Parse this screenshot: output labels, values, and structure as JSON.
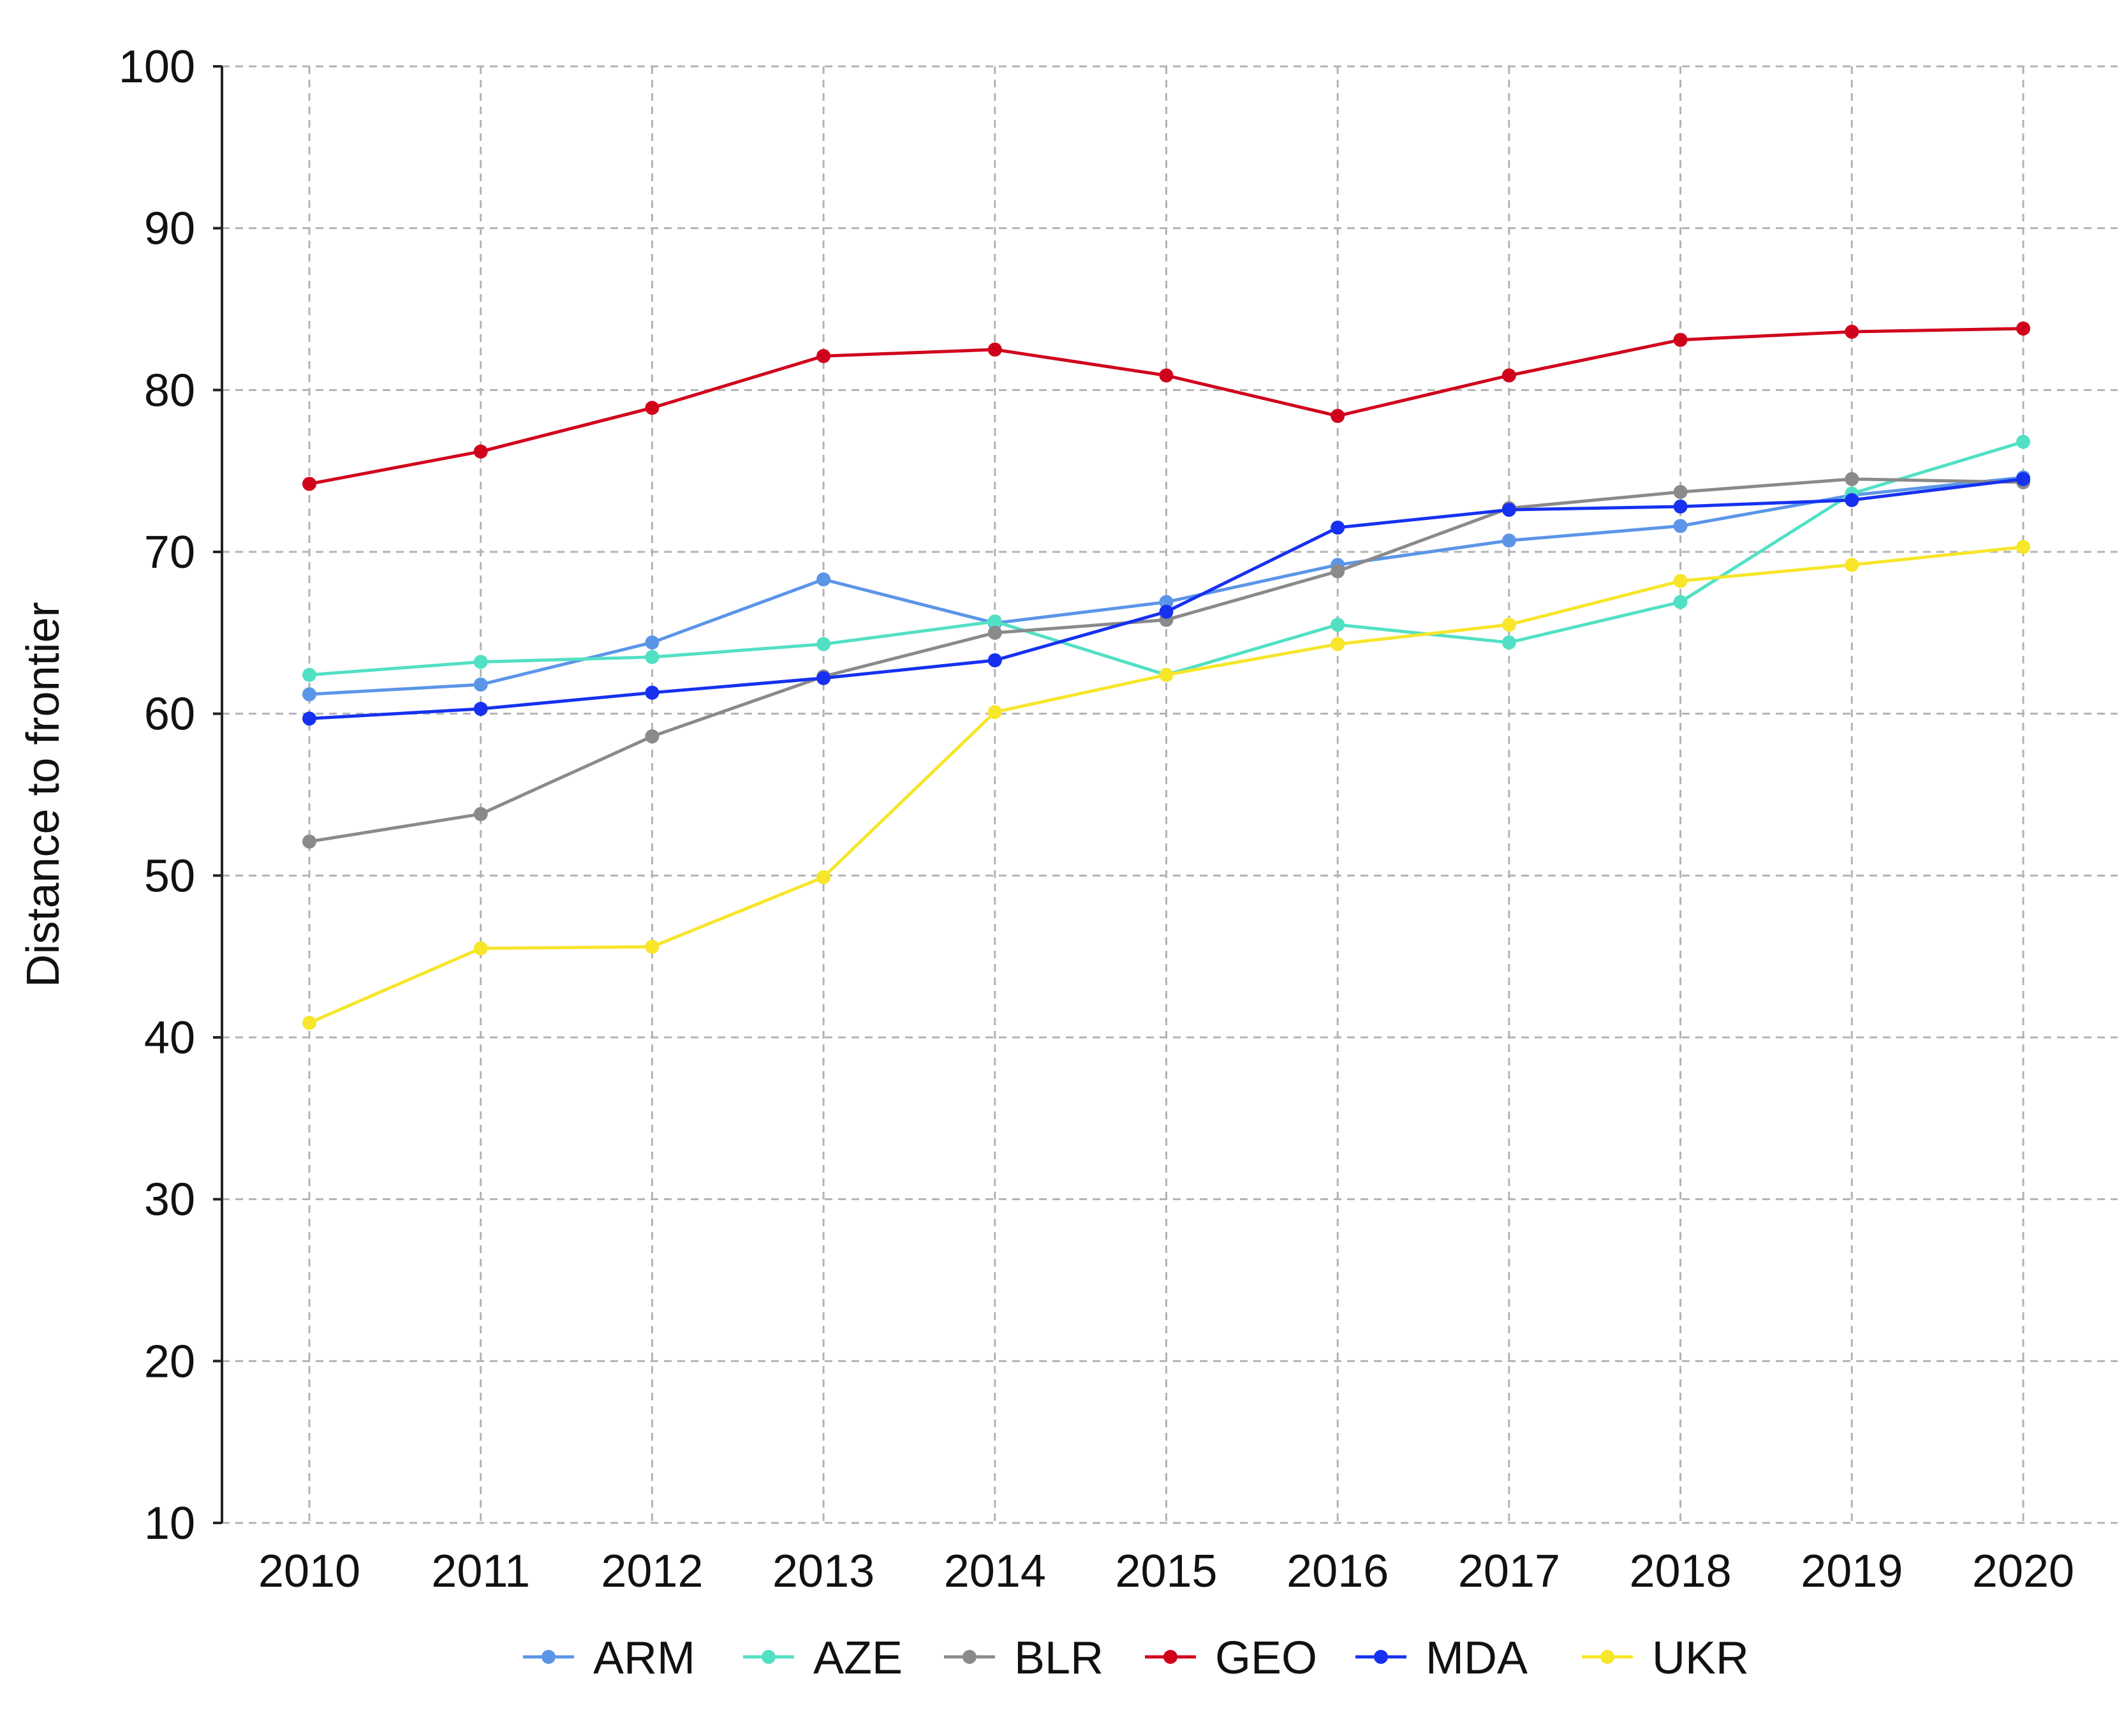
{
  "chart_data": {
    "type": "line",
    "title": "",
    "xlabel": "",
    "ylabel": "Distance to frontier",
    "x": [
      "2010",
      "2011",
      "2012",
      "2013",
      "2014",
      "2015",
      "2016",
      "2017",
      "2018",
      "2019",
      "2020"
    ],
    "ylim": [
      10,
      100
    ],
    "yticks": [
      10,
      20,
      30,
      40,
      50,
      60,
      70,
      80,
      90,
      100
    ],
    "grid": true,
    "legend_position": "bottom",
    "series": [
      {
        "name": "ARM",
        "color": "#5b95e8",
        "values": [
          61.2,
          61.8,
          64.4,
          68.3,
          65.6,
          66.9,
          69.2,
          70.7,
          71.6,
          73.5,
          74.6
        ]
      },
      {
        "name": "AZE",
        "color": "#52e0c4",
        "values": [
          62.4,
          63.2,
          63.5,
          64.3,
          65.7,
          62.4,
          65.5,
          64.4,
          66.9,
          73.6,
          76.8
        ]
      },
      {
        "name": "BLR",
        "color": "#8a8a8a",
        "values": [
          52.1,
          53.8,
          58.6,
          62.3,
          65.0,
          65.8,
          68.8,
          72.7,
          73.7,
          74.5,
          74.3
        ]
      },
      {
        "name": "GEO",
        "color": "#d0021b",
        "values": [
          74.2,
          76.2,
          78.9,
          82.1,
          82.5,
          80.9,
          78.4,
          80.9,
          83.1,
          83.6,
          83.8
        ]
      },
      {
        "name": "MDA",
        "color": "#1631f0",
        "values": [
          59.7,
          60.3,
          61.3,
          62.2,
          63.3,
          66.3,
          71.5,
          72.6,
          72.8,
          73.2,
          74.5
        ]
      },
      {
        "name": "UKR",
        "color": "#f7e62a",
        "values": [
          40.9,
          45.5,
          45.6,
          49.9,
          60.1,
          62.4,
          64.3,
          65.5,
          68.2,
          69.2,
          70.3
        ]
      }
    ]
  }
}
